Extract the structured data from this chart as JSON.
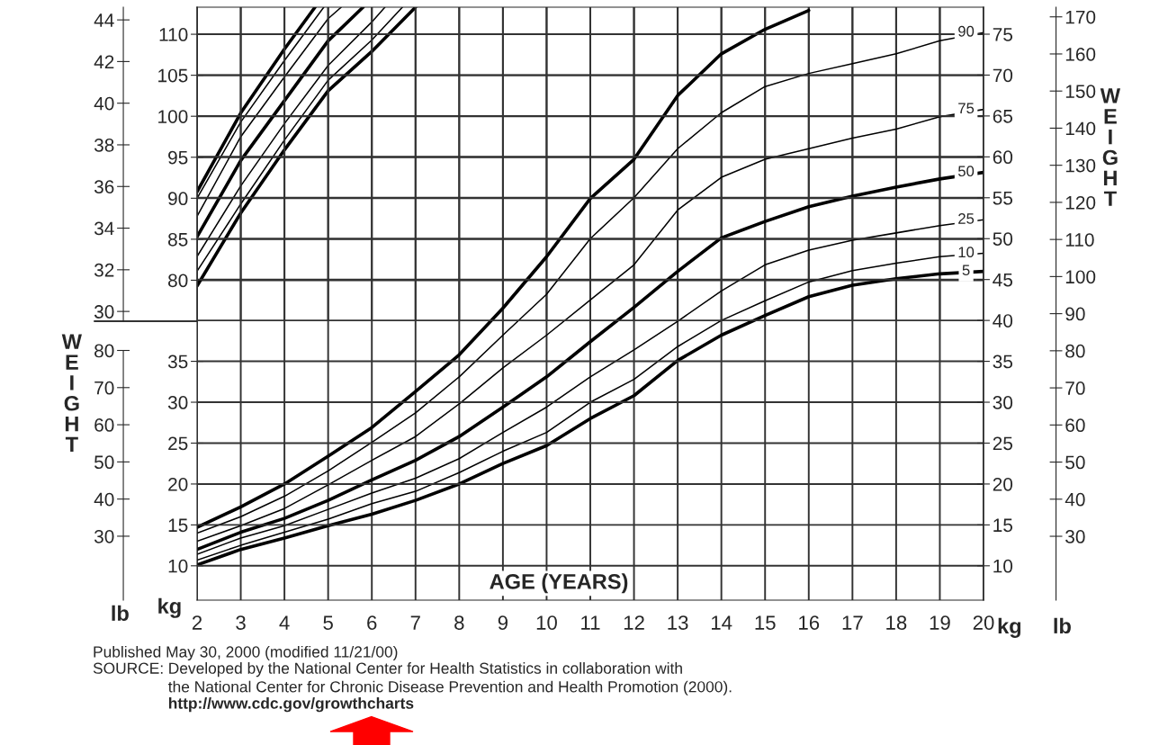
{
  "chart_data": [
    {
      "type": "line",
      "tick_labels": "y",
      "xlim": [
        2,
        20
      ],
      "ylim": [
        75.0,
        113.3
      ],
      "yticks": [
        80,
        85,
        90,
        95,
        100,
        105,
        110
      ],
      "y2lim": [
        29.53,
        44.61
      ],
      "y2ticks": [
        30,
        32,
        34,
        36,
        38,
        40,
        42,
        44
      ],
      "grid": true,
      "marker": "none",
      "line_style": "solid",
      "series": [
        {
          "color": "#000000",
          "x": [
            2,
            3,
            4,
            5,
            6,
            7.0
          ],
          "values": [
            79.3,
            88.2,
            95.9,
            103.1,
            107.9,
            113.3
          ]
        },
        {
          "color": "#000000",
          "x": [
            2,
            3,
            4,
            5,
            6,
            6.7
          ],
          "values": [
            81.1,
            89.3,
            97.1,
            104.4,
            109.3,
            113.3
          ]
        },
        {
          "color": "#000000",
          "x": [
            2,
            3,
            4,
            5,
            6,
            6.3
          ],
          "values": [
            82.9,
            91.5,
            99.1,
            106.2,
            111.5,
            113.3
          ]
        },
        {
          "color": "#000000",
          "x": [
            2,
            3,
            4,
            5,
            5.8
          ],
          "values": [
            85.3,
            94.6,
            101.9,
            109.2,
            113.3
          ]
        },
        {
          "color": "#000000",
          "x": [
            2,
            3,
            4,
            5,
            5.3
          ],
          "values": [
            87.8,
            97.5,
            104.8,
            111.9,
            113.3
          ]
        },
        {
          "color": "#000000",
          "x": [
            2,
            3,
            4,
            4.9
          ],
          "values": [
            90.0,
            99.3,
            106.8,
            113.3
          ]
        },
        {
          "color": "#000000",
          "x": [
            2,
            3,
            4,
            4.7
          ],
          "values": [
            90.8,
            100.4,
            108.2,
            113.3
          ]
        }
      ]
    },
    {
      "type": "line",
      "xlabel": "AGE (YEARS)",
      "ylabel": "kg",
      "y2label": "kg",
      "y3label": "lb",
      "xlim": [
        2,
        20
      ],
      "xticks": [
        2,
        3,
        4,
        5,
        6,
        7,
        8,
        9,
        10,
        11,
        12,
        13,
        14,
        15,
        16,
        17,
        18,
        19,
        20
      ],
      "ylim": [
        5.8,
        78.3
      ],
      "yticks": [
        10,
        15,
        20,
        25,
        30,
        35
      ],
      "y2lim": [
        5.8,
        78.3
      ],
      "y2ticks": [
        10,
        15,
        20,
        25,
        30,
        35,
        40,
        45,
        50,
        55,
        60,
        65,
        70,
        75
      ],
      "y3lim": [
        12.79,
        172.6
      ],
      "y3ticks": [
        30,
        40,
        50,
        60,
        70,
        80,
        90,
        100,
        110,
        120,
        130,
        140,
        150,
        160,
        170
      ],
      "grid": true,
      "legend": false,
      "marker": "none",
      "line_style": "solid",
      "series": [
        {
          "name": "5",
          "color": "#000000",
          "x": [
            2,
            3,
            4,
            5,
            6,
            7,
            8,
            9,
            10,
            11,
            12,
            13,
            14,
            15,
            16,
            17,
            18,
            19,
            20
          ],
          "values": [
            10.1,
            12.0,
            13.4,
            14.9,
            16.3,
            18.0,
            20.0,
            22.5,
            24.7,
            28.0,
            30.8,
            35.1,
            38.2,
            40.6,
            42.9,
            44.3,
            45.1,
            45.7,
            46.0
          ]
        },
        {
          "name": "10",
          "color": "#000000",
          "x": [
            2,
            3,
            4,
            5,
            6,
            7,
            8,
            9,
            10,
            11,
            12,
            13,
            14,
            15,
            16,
            17,
            18,
            19,
            20
          ],
          "values": [
            10.7,
            12.5,
            14.1,
            15.7,
            17.6,
            19.1,
            21.4,
            24.0,
            26.3,
            30.0,
            32.8,
            36.8,
            40.0,
            42.4,
            44.7,
            46.1,
            47.0,
            47.8,
            48.2
          ]
        },
        {
          "name": "25",
          "color": "#000000",
          "x": [
            2,
            3,
            4,
            5,
            6,
            7,
            8,
            9,
            10,
            11,
            12,
            13,
            14,
            15,
            16,
            17,
            18,
            19,
            20
          ],
          "values": [
            11.4,
            13.4,
            14.9,
            16.9,
            18.9,
            20.7,
            23.1,
            26.3,
            29.4,
            33.1,
            36.4,
            39.9,
            43.6,
            46.8,
            48.6,
            49.8,
            50.7,
            51.6,
            52.3
          ]
        },
        {
          "name": "50",
          "color": "#000000",
          "x": [
            2,
            3,
            4,
            5,
            6,
            7,
            8,
            9,
            10,
            11,
            12,
            13,
            14,
            15,
            16,
            17,
            18,
            19,
            20
          ],
          "values": [
            12.0,
            14.1,
            15.8,
            18.0,
            20.5,
            22.9,
            25.8,
            29.4,
            33.1,
            37.4,
            41.6,
            46.0,
            50.1,
            52.1,
            53.9,
            55.2,
            56.3,
            57.3,
            58.1
          ]
        },
        {
          "name": "75",
          "color": "#000000",
          "x": [
            2,
            3,
            4,
            5,
            6,
            7,
            8,
            9,
            10,
            11,
            12,
            13,
            14,
            15,
            16,
            17,
            18,
            19,
            20
          ],
          "values": [
            13.0,
            14.9,
            17.0,
            19.9,
            22.9,
            25.8,
            29.8,
            34.2,
            38.2,
            42.5,
            46.8,
            53.5,
            57.5,
            59.7,
            61.0,
            62.3,
            63.4,
            64.9,
            65.8
          ]
        },
        {
          "name": "90",
          "color": "#000000",
          "x": [
            2,
            3,
            4,
            5,
            6,
            7,
            8,
            9,
            10,
            11,
            12,
            13,
            14,
            15,
            16,
            17,
            18,
            19,
            20
          ],
          "values": [
            14.0,
            16.0,
            18.5,
            21.6,
            25.1,
            28.7,
            33.1,
            38.2,
            43.2,
            50.0,
            55.0,
            61.0,
            65.4,
            68.6,
            70.2,
            71.4,
            72.6,
            74.2,
            75.2
          ]
        },
        {
          "color": "#000000",
          "x": [
            2,
            3,
            4,
            5,
            6,
            7,
            8,
            9,
            10,
            11,
            12,
            13,
            14,
            15,
            16
          ],
          "values": [
            14.7,
            17.2,
            20.0,
            23.4,
            26.9,
            31.3,
            35.8,
            41.5,
            47.8,
            54.9,
            59.7,
            67.5,
            72.6,
            75.6,
            77.9
          ]
        }
      ],
      "annotations": [
        "WEIGHT",
        "WEIGHT",
        "Published May 30, 2000 (modified 11/21/00)",
        "SOURCE:",
        "Developed by the National Center for Health Statistics in collaboration with\nthe National Center for Chronic Disease Prevention and Health Promotion (2000).",
        "http://www.cdc.gov/growthcharts"
      ]
    },
    {
      "type": "line",
      "tick_labels": "y",
      "ylabel": "lb",
      "xlim": [
        2,
        20
      ],
      "ylim": [
        12.79,
        80
      ],
      "yticks": [
        30,
        40,
        50,
        60,
        70,
        80
      ]
    }
  ]
}
